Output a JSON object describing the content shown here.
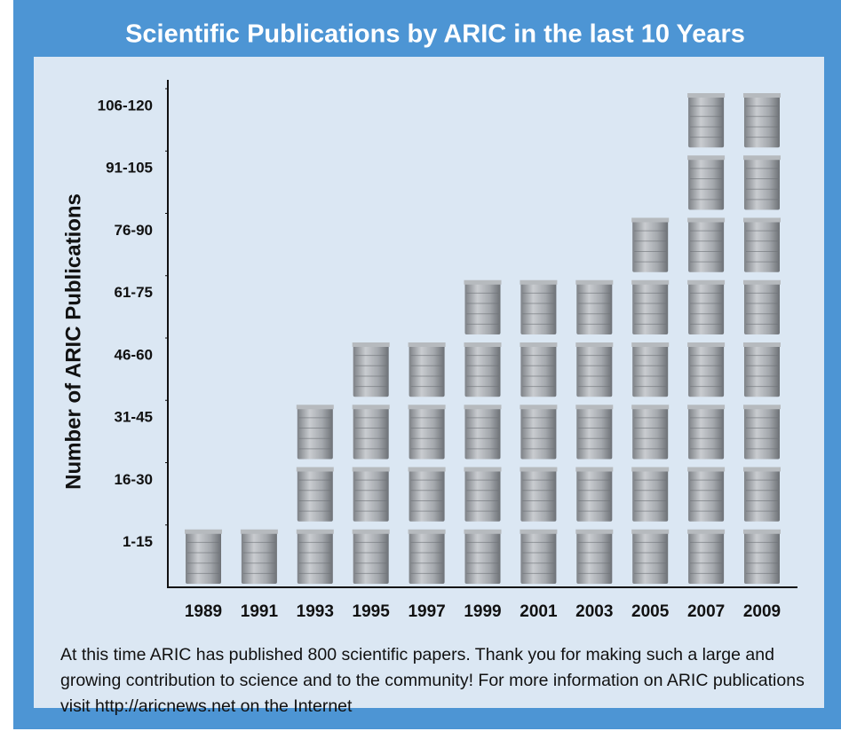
{
  "chart_data": {
    "type": "pictograph",
    "title": "Scientific Publications by ARIC in the last 10 Years",
    "y_label": "Number of ARIC Publications",
    "categories": [
      "1989",
      "1991",
      "1993",
      "1995",
      "1997",
      "1999",
      "2001",
      "2003",
      "2005",
      "2007",
      "2009"
    ],
    "values": [
      1,
      1,
      3,
      4,
      4,
      5,
      5,
      5,
      6,
      8,
      8
    ],
    "ylim": [
      0,
      8
    ],
    "yticks": [
      {
        "value": 1,
        "label": "1-15"
      },
      {
        "value": 2,
        "label": "16-30"
      },
      {
        "value": 3,
        "label": "31-45"
      },
      {
        "value": 4,
        "label": "46-60"
      },
      {
        "value": 5,
        "label": "61-75"
      },
      {
        "value": 6,
        "label": "76-90"
      },
      {
        "value": 7,
        "label": "91-105"
      },
      {
        "value": 8,
        "label": "106-120"
      }
    ],
    "color": "#9a9ea3",
    "note": "At this time ARIC has published 800 scientific papers. Thank you for making such a large and growing contribution to science and to the community! For more information on ARIC publications visit http://aricnews.net on the Internet"
  }
}
